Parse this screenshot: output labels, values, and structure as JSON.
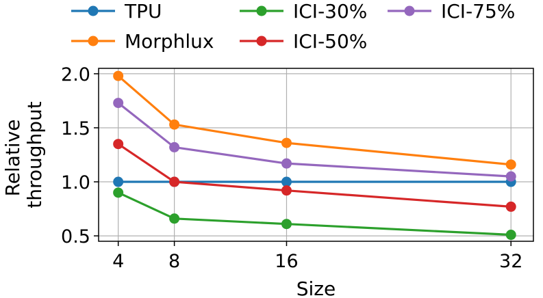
{
  "chart_data": {
    "type": "line",
    "x": [
      4,
      8,
      16,
      32
    ],
    "xticks": [
      "4",
      "8",
      "16",
      "32"
    ],
    "yticks": [
      "0.5",
      "1.0",
      "1.5",
      "2.0"
    ],
    "xlabel": "Size",
    "ylabel_lines": [
      "Relative",
      "throughput"
    ],
    "xlim": [
      2.6,
      33.6
    ],
    "ylim": [
      0.45,
      2.05
    ],
    "grid": true,
    "legend_position": "top",
    "series": [
      {
        "name": "TPU",
        "color": "#1f77b4",
        "values": [
          1.0,
          1.0,
          1.0,
          1.0
        ]
      },
      {
        "name": "Morphlux",
        "color": "#ff7f0e",
        "values": [
          1.98,
          1.53,
          1.36,
          1.16
        ]
      },
      {
        "name": "ICI-30%",
        "color": "#2ca02c",
        "values": [
          0.9,
          0.66,
          0.61,
          0.51
        ]
      },
      {
        "name": "ICI-50%",
        "color": "#d62728",
        "values": [
          1.35,
          1.0,
          0.92,
          0.77
        ]
      },
      {
        "name": "ICI-75%",
        "color": "#9467bd",
        "values": [
          1.73,
          1.32,
          1.17,
          1.05
        ]
      }
    ]
  }
}
